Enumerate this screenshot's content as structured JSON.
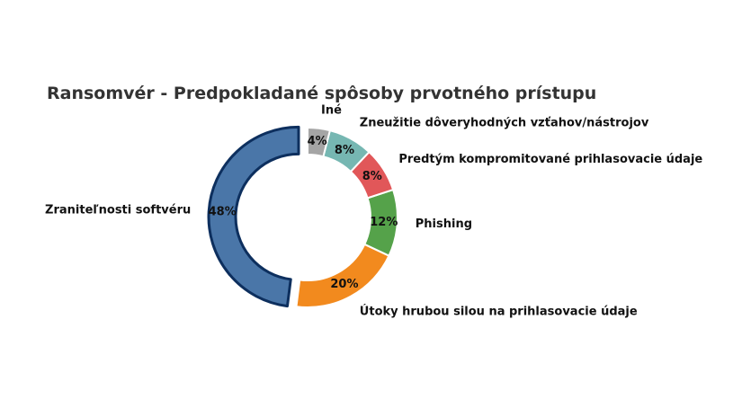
{
  "chart_data": {
    "type": "pie",
    "style": "donut",
    "title": "Ransomvér - Predpokladané spôsoby prvotného prístupu",
    "slices": [
      {
        "label": "Zraniteľnosti softvéru",
        "value": 48,
        "pct_label": "48%",
        "color": "#4a76a8",
        "edge_color": "#0d2f5e",
        "exploded": true
      },
      {
        "label": "Útoky hrubou silou na prihlasovacie údaje",
        "value": 20,
        "pct_label": "20%",
        "color": "#f28a1e",
        "edge_color": "#ffffff",
        "exploded": false
      },
      {
        "label": "Phishing",
        "value": 12,
        "pct_label": "12%",
        "color": "#55a24a",
        "edge_color": "#ffffff",
        "exploded": false
      },
      {
        "label": "Predtým kompromitované prihlasovacie údaje",
        "value": 8,
        "pct_label": "8%",
        "color": "#e15759",
        "edge_color": "#ffffff",
        "exploded": false
      },
      {
        "label": "Zneužitie dôveryhodných vzťahov/nástrojov",
        "value": 8,
        "pct_label": "8%",
        "color": "#76b7b2",
        "edge_color": "#ffffff",
        "exploded": false
      },
      {
        "label": "Iné",
        "value": 4,
        "pct_label": "4%",
        "color": "#a5a5a5",
        "edge_color": "#ffffff",
        "exploded": false
      }
    ]
  }
}
